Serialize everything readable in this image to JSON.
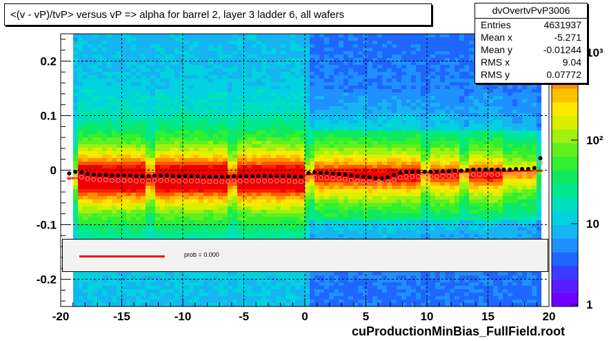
{
  "title": "<(v - vP)/tvP> versus   vP => alpha for barrel 2, layer 3 ladder 6, all wafers",
  "stats": {
    "name": "dvOvertvPvP3006",
    "rows": [
      {
        "key": "Entries",
        "value": "4631937"
      },
      {
        "key": "Mean x",
        "value": "-5.271"
      },
      {
        "key": "Mean y",
        "value": "-0.01244"
      },
      {
        "key": "RMS x",
        "value": "9.04"
      },
      {
        "key": "RMS y",
        "value": "0.07772"
      }
    ]
  },
  "legend": {
    "fit_label": "prob = 0.000",
    "fit_color": "#ff0000"
  },
  "footer": "cuProductionMinBias_FullField.root",
  "colors": {
    "fit_line": "#ff0000",
    "profile_markers": "#000000",
    "open_markers": "#ff8888"
  },
  "chart_data": {
    "type": "heatmap",
    "title": "<(v - vP)/tvP> versus   vP => alpha for barrel 2, layer 3 ladder 6, all wafers",
    "xlabel": "",
    "ylabel": "",
    "xlim": [
      -20,
      20
    ],
    "ylim": [
      -0.25,
      0.25
    ],
    "x_ticks": [
      -20,
      -15,
      -10,
      -5,
      0,
      5,
      10,
      15,
      20
    ],
    "x_tick_labels": [
      "-20",
      "-15",
      "-10",
      "-5",
      "0",
      "5",
      "10",
      "15",
      "20"
    ],
    "y_ticks": [
      -0.2,
      -0.1,
      0,
      0.1,
      0.2
    ],
    "y_tick_labels": [
      "-0.2",
      "-0.1",
      "0",
      "0.1",
      "0.2"
    ],
    "grid": true,
    "z_scale": "log",
    "z_tick_labels": [
      "1",
      "10",
      "10²",
      "10³"
    ],
    "profile_points": {
      "x": [
        -19.3,
        -18.8,
        -18.3,
        -17.8,
        -17.3,
        -16.8,
        -16.3,
        -15.8,
        -15.3,
        -14.8,
        -14.3,
        -13.8,
        -13.3,
        -12.8,
        -12.3,
        -11.8,
        -11.3,
        -10.8,
        -10.3,
        -9.8,
        -9.3,
        -8.8,
        -8.3,
        -7.8,
        -7.3,
        -6.8,
        -6.3,
        -5.8,
        -5.3,
        -4.8,
        -4.3,
        -3.8,
        -3.3,
        -2.8,
        -2.3,
        -1.8,
        -1.3,
        -0.8,
        -0.3,
        0.3,
        0.8,
        1.3,
        1.8,
        2.3,
        2.8,
        3.3,
        3.8,
        4.3,
        4.8,
        5.3,
        5.8,
        6.3,
        6.8,
        7.3,
        7.8,
        8.3,
        8.8,
        9.3,
        9.8,
        10.3,
        10.8,
        11.3,
        11.8,
        12.3,
        12.8,
        13.3,
        13.8,
        14.3,
        14.8,
        15.3,
        15.8,
        16.3,
        16.8,
        17.3,
        17.8,
        18.3,
        18.8,
        19.3
      ],
      "y": [
        -0.006,
        -0.003,
        -0.004,
        -0.007,
        -0.008,
        -0.009,
        -0.009,
        -0.01,
        -0.01,
        -0.01,
        -0.01,
        -0.011,
        -0.011,
        -0.011,
        -0.01,
        -0.01,
        -0.01,
        -0.011,
        -0.011,
        -0.011,
        -0.011,
        -0.011,
        -0.012,
        -0.012,
        -0.012,
        -0.012,
        -0.012,
        -0.011,
        -0.011,
        -0.011,
        -0.011,
        -0.011,
        -0.011,
        -0.011,
        -0.011,
        -0.011,
        -0.011,
        -0.012,
        -0.012,
        -0.005,
        -0.004,
        -0.005,
        -0.005,
        -0.006,
        -0.007,
        -0.008,
        -0.01,
        -0.011,
        -0.012,
        -0.013,
        -0.015,
        -0.015,
        -0.013,
        -0.009,
        -0.005,
        -0.003,
        -0.003,
        -0.003,
        -0.003,
        -0.003,
        -0.003,
        -0.002,
        -0.002,
        -0.001,
        -0.001,
        0.0,
        0.001,
        0.001,
        0.001,
        0.001,
        0.001,
        0.001,
        0.001,
        0.002,
        0.002,
        0.002,
        0.004,
        0.022
      ]
    },
    "fit_line": {
      "x": [
        -19.5,
        19.5
      ],
      "y": [
        -0.015,
        -0.001
      ]
    }
  }
}
